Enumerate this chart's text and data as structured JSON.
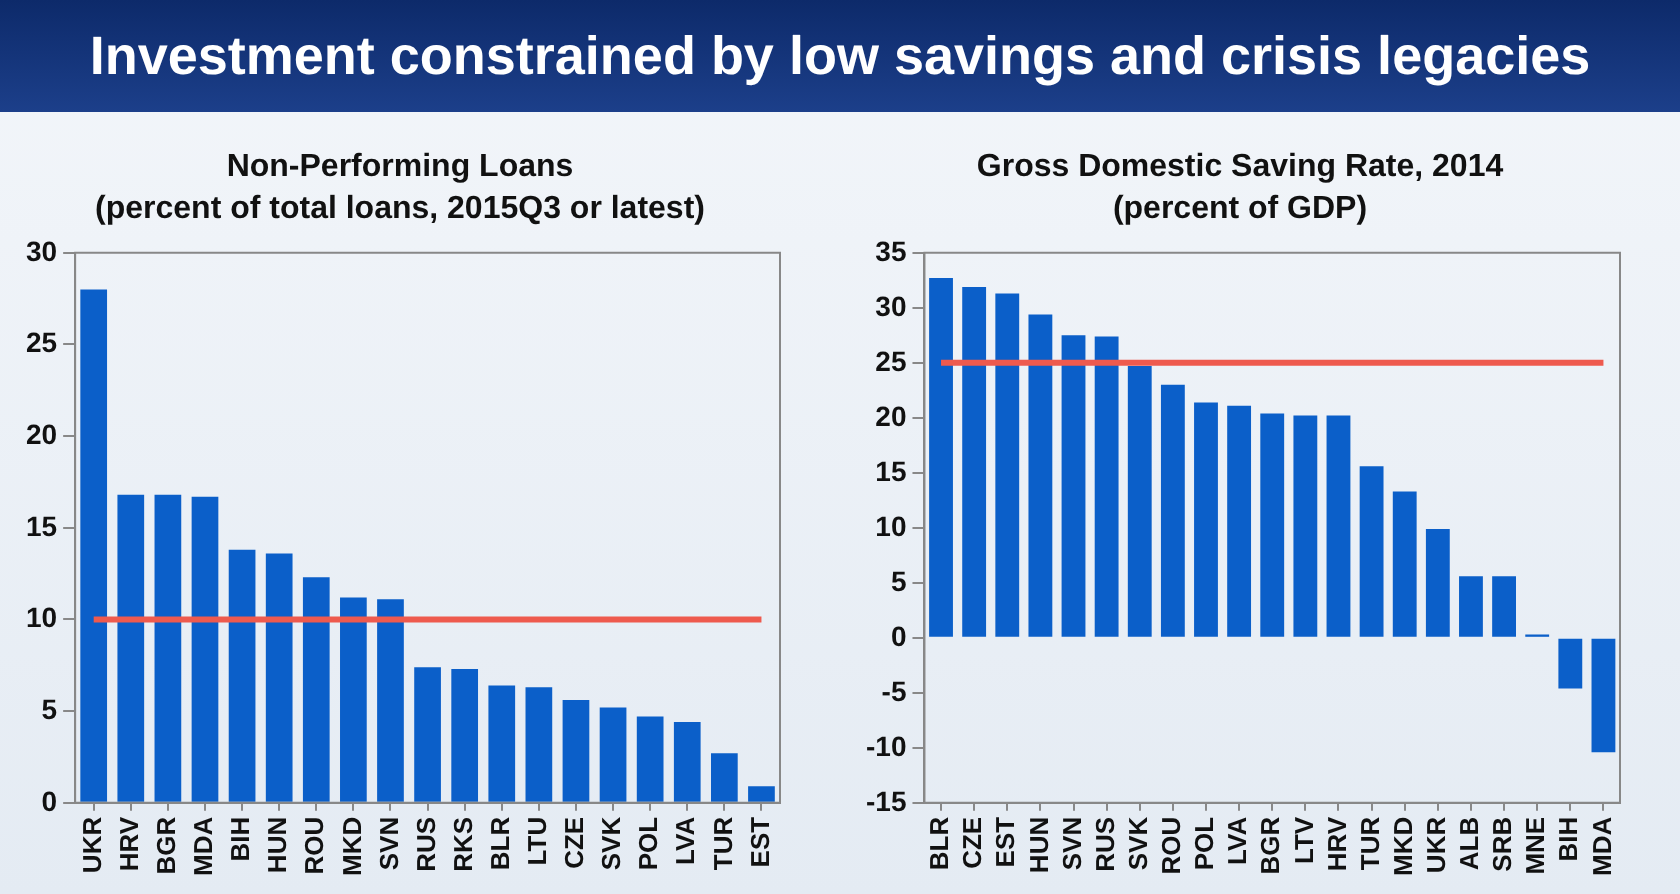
{
  "chart_data": [
    {
      "type": "other",
      "title": "Investment constrained by low savings and crisis legacies"
    },
    {
      "type": "bar",
      "title": "Non-Performing Loans",
      "subtitle": "(percent of total loans, 2015Q3 or latest)",
      "categories": [
        "UKR",
        "HRV",
        "BGR",
        "MDA",
        "BIH",
        "HUN",
        "ROU",
        "MKD",
        "SVN",
        "RUS",
        "RKS",
        "BLR",
        "LTU",
        "CZE",
        "SVK",
        "POL",
        "LVA",
        "TUR",
        "EST"
      ],
      "values": [
        28.0,
        16.8,
        16.8,
        16.7,
        13.8,
        13.6,
        12.3,
        11.2,
        11.1,
        7.4,
        7.3,
        6.4,
        6.3,
        5.6,
        5.2,
        4.7,
        4.4,
        2.7,
        0.9
      ],
      "color": "#0b5fc9",
      "ylim": [
        0,
        30
      ],
      "yticks": [
        0,
        5,
        10,
        15,
        20,
        25,
        30
      ],
      "grid": false,
      "legend": false,
      "ref_lines": [
        {
          "axis": "y",
          "value": 10,
          "color": "#ee5a4e"
        }
      ]
    },
    {
      "type": "bar",
      "title": "Gross Domestic Saving Rate, 2014",
      "subtitle": "(percent of GDP)",
      "categories": [
        "BLR",
        "CZE",
        "EST",
        "HUN",
        "SVN",
        "RUS",
        "SVK",
        "ROU",
        "POL",
        "LVA",
        "BGR",
        "LTV",
        "HRV",
        "TUR",
        "MKD",
        "UKR",
        "ALB",
        "SRB",
        "MNE",
        "BIH",
        "MDA"
      ],
      "values": [
        32.7,
        31.9,
        31.3,
        29.4,
        27.5,
        27.4,
        24.7,
        23.0,
        21.4,
        21.1,
        20.4,
        20.2,
        20.2,
        15.6,
        13.3,
        9.9,
        5.6,
        5.6,
        0.3,
        -4.6,
        -10.4
      ],
      "color": "#0b5fc9",
      "ylim": [
        -15,
        35
      ],
      "yticks": [
        -15,
        -10,
        -5,
        0,
        5,
        10,
        15,
        20,
        25,
        30,
        35
      ],
      "grid": false,
      "legend": false,
      "ref_lines": [
        {
          "axis": "y",
          "value": 25,
          "color": "#ee5a4e"
        }
      ]
    }
  ]
}
